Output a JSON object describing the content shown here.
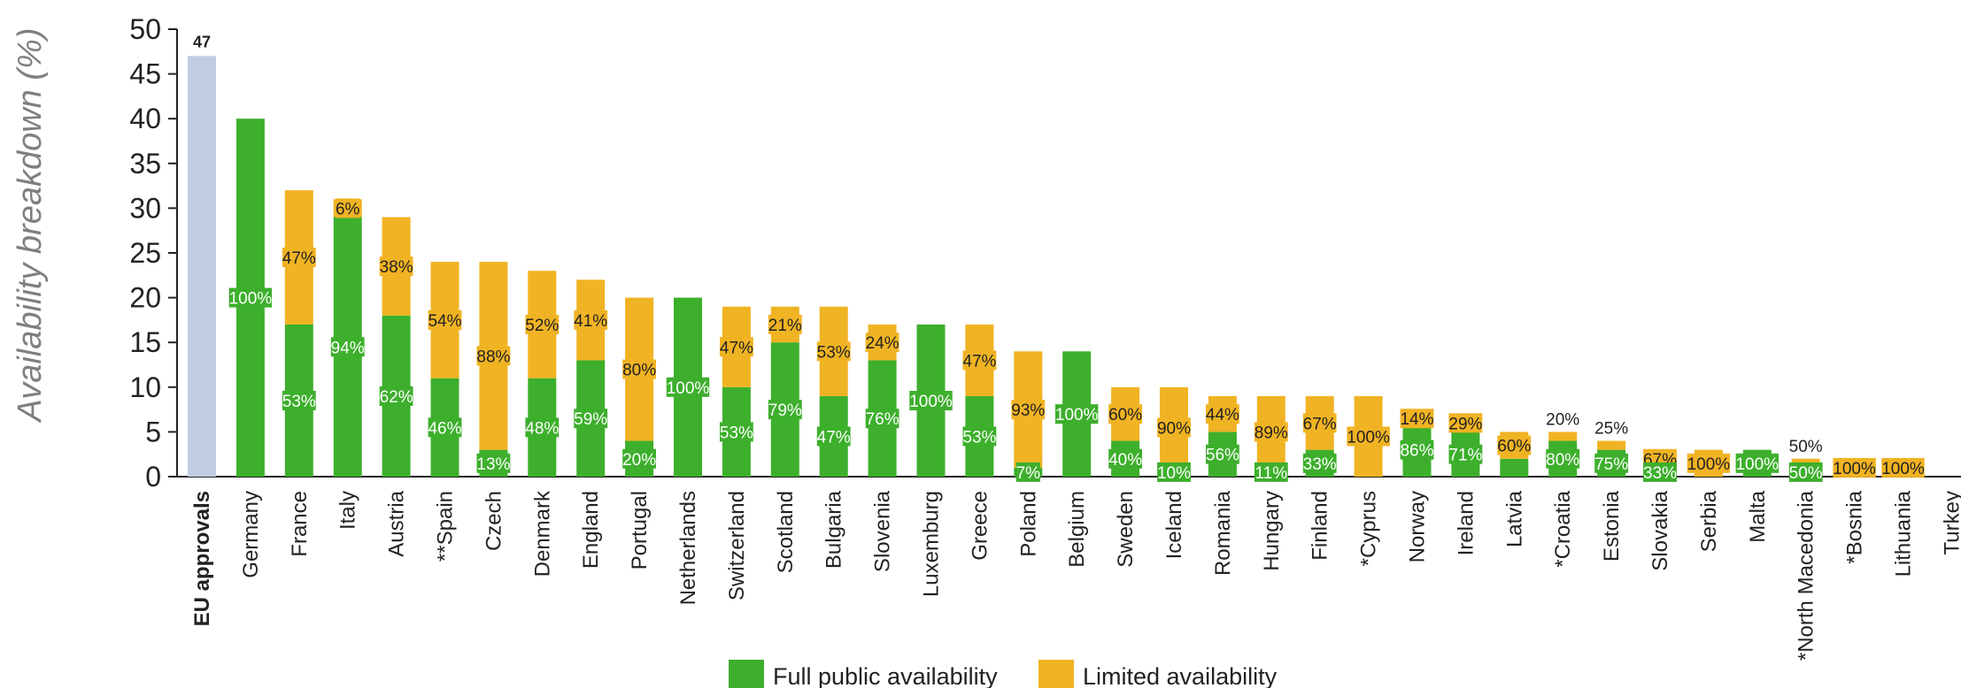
{
  "chart_data": {
    "type": "bar",
    "stacked": true,
    "ylabel": "Availability breakdown (%)",
    "ylim": [
      0,
      50
    ],
    "yticks": [
      0,
      5,
      10,
      15,
      20,
      25,
      30,
      35,
      40,
      45,
      50
    ],
    "legend_position": "bottom-center",
    "colors": {
      "full": "#3daf2c",
      "limited": "#f0b323",
      "eu": "#c2cde4"
    },
    "series": [
      {
        "name": "Full public availability",
        "color": "#3daf2c"
      },
      {
        "name": "Limited availability",
        "color": "#f0b323"
      }
    ],
    "categories": [
      {
        "label": "EU approvals",
        "bold": true,
        "eu": 47,
        "eu_label": "47"
      },
      {
        "label": "Germany",
        "full": 40,
        "limited": 0,
        "full_label": "100%"
      },
      {
        "label": "France",
        "full": 17,
        "limited": 15,
        "full_label": "53%",
        "limited_label": "47%"
      },
      {
        "label": "Italy",
        "full": 29,
        "limited": 2,
        "full_label": "94%",
        "limited_label": "6%"
      },
      {
        "label": "Austria",
        "full": 18,
        "limited": 11,
        "full_label": "62%",
        "limited_label": "38%"
      },
      {
        "label": "**Spain",
        "full": 11,
        "limited": 13,
        "full_label": "46%",
        "limited_label": "54%"
      },
      {
        "label": "Czech",
        "full": 3,
        "limited": 21,
        "full_label": "13%",
        "limited_label": "88%"
      },
      {
        "label": "Denmark",
        "full": 11,
        "limited": 12,
        "full_label": "48%",
        "limited_label": "52%"
      },
      {
        "label": "England",
        "full": 13,
        "limited": 9,
        "full_label": "59%",
        "limited_label": "41%"
      },
      {
        "label": "Portugal",
        "full": 4,
        "limited": 16,
        "full_label": "20%",
        "limited_label": "80%"
      },
      {
        "label": "Netherlands",
        "full": 20,
        "limited": 0,
        "full_label": "100%"
      },
      {
        "label": "Switzerland",
        "full": 10,
        "limited": 9,
        "full_label": "53%",
        "limited_label": "47%"
      },
      {
        "label": "Scotland",
        "full": 15,
        "limited": 4,
        "full_label": "79%",
        "limited_label": "21%"
      },
      {
        "label": "Bulgaria",
        "full": 9,
        "limited": 10,
        "full_label": "47%",
        "limited_label": "53%"
      },
      {
        "label": "Slovenia",
        "full": 13,
        "limited": 4,
        "full_label": "76%",
        "limited_label": "24%"
      },
      {
        "label": "Luxemburg",
        "full": 17,
        "limited": 0,
        "full_label": "100%"
      },
      {
        "label": "Greece",
        "full": 9,
        "limited": 8,
        "full_label": "53%",
        "limited_label": "47%"
      },
      {
        "label": "Poland",
        "full": 1,
        "limited": 13,
        "full_label": "7%",
        "limited_label": "93%"
      },
      {
        "label": "Belgium",
        "full": 14,
        "limited": 0,
        "full_label": "100%"
      },
      {
        "label": "Sweden",
        "full": 4,
        "limited": 6,
        "full_label": "40%",
        "limited_label": "60%"
      },
      {
        "label": "Iceland",
        "full": 1,
        "limited": 9,
        "full_label": "10%",
        "limited_label": "90%"
      },
      {
        "label": "Romania",
        "full": 5,
        "limited": 4,
        "full_label": "56%",
        "limited_label": "44%"
      },
      {
        "label": "Hungary",
        "full": 1,
        "limited": 8,
        "full_label": "11%",
        "limited_label": "89%"
      },
      {
        "label": "Finland",
        "full": 3,
        "limited": 6,
        "full_label": "33%",
        "limited_label": "67%"
      },
      {
        "label": "*Cyprus",
        "full": 0,
        "limited": 9,
        "limited_label": "100%"
      },
      {
        "label": "Norway",
        "full": 6,
        "limited": 1,
        "full_label": "86%",
        "limited_label": "14%"
      },
      {
        "label": "Ireland",
        "full": 5,
        "limited": 2,
        "full_label": "71%",
        "limited_label": "29%"
      },
      {
        "label": "Latvia",
        "full": 2,
        "limited": 3,
        "limited_label": "60%"
      },
      {
        "label": "*Croatia",
        "full": 4,
        "limited": 1,
        "full_label": "80%",
        "limited_label": "20%"
      },
      {
        "label": "Estonia",
        "full": 3,
        "limited": 1,
        "full_label": "75%",
        "limited_label": "25%"
      },
      {
        "label": "Slovakia",
        "full": 1,
        "limited": 2,
        "full_label": "33%",
        "limited_label": "67%"
      },
      {
        "label": "Serbia",
        "full": 0,
        "limited": 3,
        "limited_label": "100%"
      },
      {
        "label": "Malta",
        "full": 3,
        "limited": 0,
        "full_label": "100%"
      },
      {
        "label": "*North Macedonia",
        "full": 1,
        "limited": 1,
        "full_label": "50%",
        "limited_label": "50%"
      },
      {
        "label": "*Bosnia",
        "full": 0,
        "limited": 2,
        "limited_label": "100%"
      },
      {
        "label": "Lithuania",
        "full": 0,
        "limited": 2,
        "limited_label": "100%"
      },
      {
        "label": "Turkey",
        "full": 0,
        "limited": 0
      }
    ]
  }
}
